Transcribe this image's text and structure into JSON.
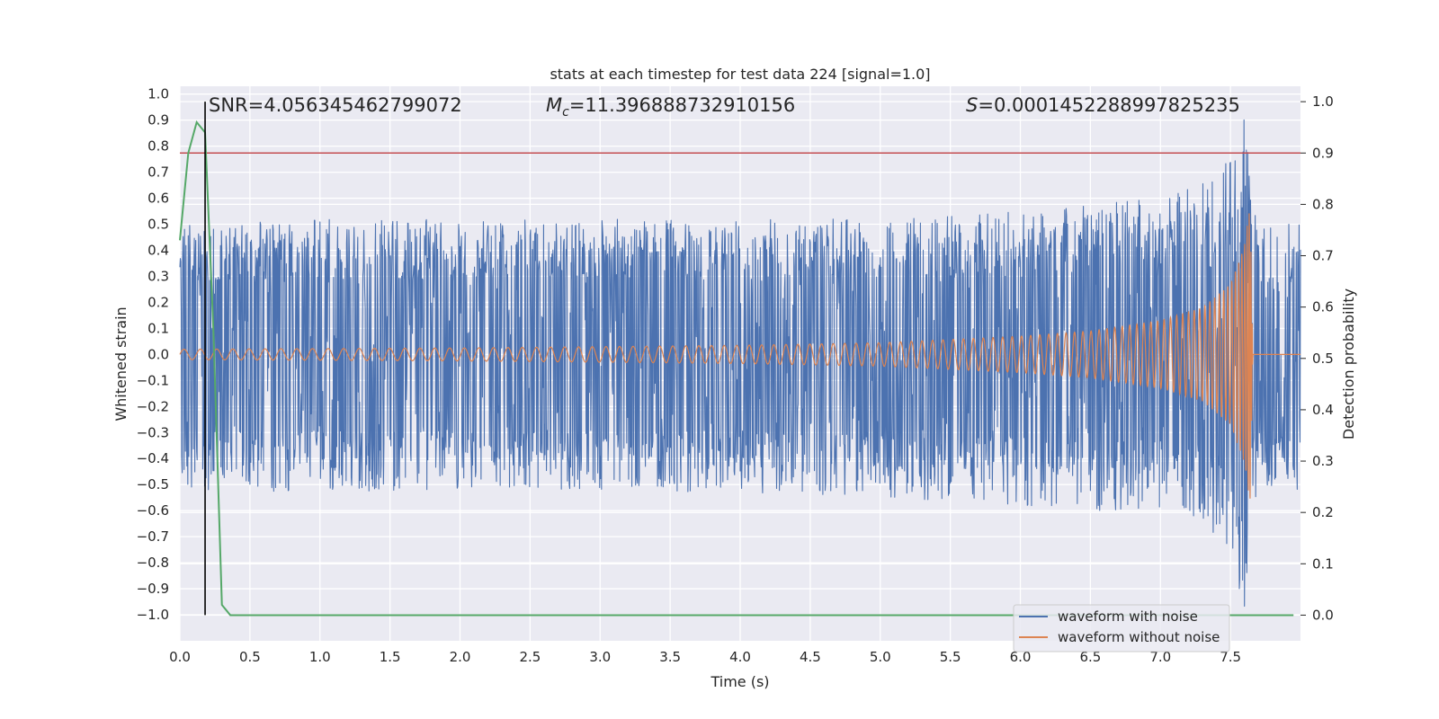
{
  "chart_data": {
    "type": "line",
    "title": "stats at each timestep for test data 224 [signal=1.0]",
    "xlabel": "Time (s)",
    "ylabel_left": "Whitened strain",
    "ylabel_right": "Detection probability",
    "xlim": [
      0.0,
      8.0
    ],
    "ylim_left": [
      -1.1,
      1.03
    ],
    "ylim_right": [
      -0.05,
      1.03
    ],
    "x_ticks": [
      "0.0",
      "0.5",
      "1.0",
      "1.5",
      "2.0",
      "2.5",
      "3.0",
      "3.5",
      "4.0",
      "4.5",
      "5.0",
      "5.5",
      "6.0",
      "6.5",
      "7.0",
      "7.5"
    ],
    "y_ticks_left": [
      "1.0",
      "0.9",
      "0.8",
      "0.7",
      "0.6",
      "0.5",
      "0.4",
      "0.3",
      "0.2",
      "0.1",
      "0.0",
      "−0.1",
      "−0.2",
      "−0.3",
      "−0.4",
      "−0.5",
      "−0.6",
      "−0.7",
      "−0.8",
      "−0.9",
      "−1.0"
    ],
    "y_ticks_right": [
      "1.0",
      "0.9",
      "0.8",
      "0.7",
      "0.6",
      "0.5",
      "0.4",
      "0.3",
      "0.2",
      "0.1",
      "0.0"
    ],
    "annotations": {
      "snr": "SNR=4.056345462799072",
      "mc_symbol": "M",
      "mc_sub": "c",
      "mc_value": "=11.396888732910156",
      "s_symbol": "S",
      "s_value": "=0.0001452288997825235"
    },
    "legend": {
      "placement": "lower-right",
      "entries": [
        "waveform with noise",
        "waveform without noise"
      ]
    },
    "series": [
      {
        "name": "waveform with noise",
        "axis": "left",
        "color": "#4c72b0",
        "description_points": {
          "x": [
            0.0,
            1.0,
            2.0,
            3.0,
            4.0,
            5.0,
            6.0,
            6.5,
            7.0,
            7.3,
            7.5,
            7.6,
            7.65,
            7.7,
            8.0
          ],
          "upper": [
            0.5,
            0.52,
            0.52,
            0.52,
            0.52,
            0.52,
            0.55,
            0.58,
            0.62,
            0.68,
            0.75,
            0.93,
            0.6,
            0.5,
            0.5
          ],
          "lower": [
            -0.52,
            -0.53,
            -0.53,
            -0.53,
            -0.53,
            -0.55,
            -0.58,
            -0.6,
            -0.6,
            -0.65,
            -0.75,
            -1.0,
            -0.6,
            -0.52,
            -0.52
          ]
        }
      },
      {
        "name": "waveform without noise",
        "axis": "left",
        "color": "#dd8452",
        "description_points": {
          "x": [
            0.0,
            2.0,
            4.0,
            5.0,
            6.0,
            6.5,
            7.0,
            7.3,
            7.5,
            7.6,
            7.64,
            7.66,
            8.0
          ],
          "amplitude": [
            0.02,
            0.025,
            0.035,
            0.045,
            0.07,
            0.09,
            0.13,
            0.18,
            0.27,
            0.42,
            0.58,
            0.0,
            0.0
          ],
          "min_at_merger": -0.7
        }
      },
      {
        "name": "",
        "axis": "right",
        "color": "#55a868",
        "x": [
          0.0,
          0.06,
          0.12,
          0.18,
          0.24,
          0.3,
          0.36,
          8.0
        ],
        "y": [
          0.73,
          0.9,
          0.96,
          0.94,
          0.55,
          0.02,
          0.0,
          0.0
        ]
      }
    ],
    "reference_lines": {
      "threshold_right_axis": 0.9,
      "threshold_color": "#c44e52",
      "vertical_marker_x": 0.18,
      "vertical_marker_color": "#000000"
    }
  }
}
